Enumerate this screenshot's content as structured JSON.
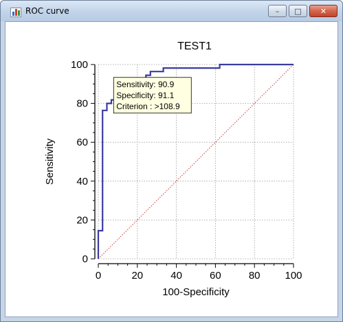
{
  "window": {
    "title": "ROC curve",
    "minimize_glyph": "–",
    "maximize_glyph": "□",
    "close_glyph": "✕",
    "icon": "bar-chart-icon"
  },
  "colors": {
    "roc_line": "#3b3ba0",
    "diagonal": "#d03030",
    "grid": "#9a9a9a",
    "tooltip_bg": "#ffffe1"
  },
  "chart_data": {
    "type": "line",
    "title": "TEST1",
    "xlabel": "100-Specificity",
    "ylabel": "Sensitivity",
    "xlim": [
      0,
      100
    ],
    "ylim": [
      0,
      100
    ],
    "xticks": [
      0,
      20,
      40,
      60,
      80,
      100
    ],
    "yticks": [
      0,
      20,
      40,
      60,
      80,
      100
    ],
    "grid": true,
    "legend": "none",
    "series": [
      {
        "style": "solid-step",
        "x": [
          0,
          0,
          2.2,
          2.2,
          4.4,
          4.4,
          6.7,
          6.7,
          8.9,
          8.9,
          13.3,
          13.3,
          24.4,
          24.4,
          26.7,
          26.7,
          33.3,
          33.3,
          62.2,
          62.2,
          100
        ],
        "y": [
          0,
          14.5,
          14.5,
          76.4,
          76.4,
          80,
          80,
          81.8,
          81.8,
          90.9,
          90.9,
          92.7,
          92.7,
          94.5,
          94.5,
          96.4,
          96.4,
          98.2,
          98.2,
          100,
          100
        ]
      },
      {
        "style": "dotted-diagonal",
        "x": [
          0,
          100
        ],
        "y": [
          0,
          100
        ]
      }
    ],
    "annotation": {
      "at": [
        8.9,
        90.9
      ],
      "lines": [
        "Sensitivity: 90.9",
        "Specificity: 91.1",
        "Criterion : >108.9"
      ]
    }
  }
}
